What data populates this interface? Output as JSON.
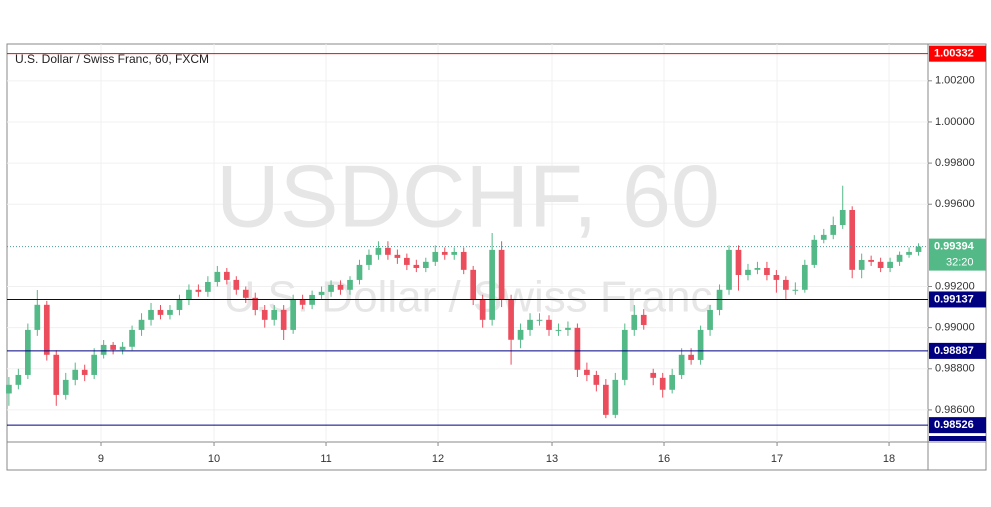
{
  "chart_data": {
    "type": "candlestick",
    "title": "U.S. Dollar / Swiss Franc, 60, FXCM",
    "watermark": "USDCHF, 60",
    "watermark_subtitle": "U.S. Dollar / Swiss Franc",
    "up_color": "#53b987",
    "down_color": "#eb4d5c",
    "open": [
      0.9868,
      0.98722,
      0.9877,
      0.98989,
      0.99111,
      0.98868,
      0.98673,
      0.98746,
      0.98795,
      0.9877,
      0.98868,
      0.98916,
      0.98892,
      0.98907,
      0.98989,
      0.99038,
      0.99086,
      0.99062,
      0.99086,
      0.99135,
      0.99184,
      0.99174,
      0.99222,
      0.99271,
      0.99232,
      0.99184,
      0.99145,
      0.99086,
      0.99038,
      0.99086,
      0.98989,
      0.99135,
      0.99111,
      0.99159,
      0.99174,
      0.99208,
      0.99184,
      0.99232,
      0.99305,
      0.99354,
      0.99388,
      0.99354,
      0.99339,
      0.99305,
      0.9929,
      0.9932,
      0.99368,
      0.99354,
      0.99368,
      0.99281,
      0.99135,
      0.99038,
      0.99378,
      0.99135,
      0.98941,
      0.98989,
      0.99038,
      0.99038,
      0.98989,
      0.98989,
      0.98999,
      0.98795,
      0.9877,
      0.98722,
      0.98576,
      0.98746,
      0.98989,
      0.99062,
      0.9878,
      0.98756,
      0.98698,
      0.9877,
      0.98868,
      0.98843,
      0.98989,
      0.99086,
      0.99184,
      0.99378,
      0.99256,
      0.99281,
      0.9929,
      0.99256,
      0.99232,
      0.99184,
      0.99184,
      0.99305,
      0.99427,
      0.99451,
      0.99499,
      0.99572,
      0.99281,
      0.99329,
      0.9932,
      0.9929,
      0.9932,
      0.99354,
      0.99368
    ],
    "high": [
      0.9876,
      0.988,
      0.9902,
      0.99183,
      0.9913,
      0.9889,
      0.9878,
      0.9883,
      0.9882,
      0.989,
      0.9894,
      0.9893,
      0.9893,
      0.9901,
      0.9907,
      0.9912,
      0.9911,
      0.9911,
      0.9916,
      0.9921,
      0.9921,
      0.9925,
      0.993,
      0.9929,
      0.9925,
      0.992,
      0.9917,
      0.9911,
      0.9911,
      0.9911,
      0.9916,
      0.9916,
      0.9918,
      0.992,
      0.9923,
      0.9923,
      0.9925,
      0.9933,
      0.9938,
      0.9942,
      0.9942,
      0.9938,
      0.9936,
      0.9933,
      0.9934,
      0.994,
      0.9939,
      0.9939,
      0.9939,
      0.993,
      0.9916,
      0.9946,
      0.9942,
      0.9916,
      0.9902,
      0.9907,
      0.9907,
      0.9906,
      0.9902,
      0.9903,
      0.9902,
      0.9883,
      0.9879,
      0.9875,
      0.9878,
      0.9902,
      0.9911,
      0.9909,
      0.988,
      0.9878,
      0.988,
      0.989,
      0.989,
      0.9901,
      0.9911,
      0.9921,
      0.994,
      0.994,
      0.9931,
      0.9932,
      0.9932,
      0.9928,
      0.9925,
      0.9922,
      0.9933,
      0.9945,
      0.9948,
      0.9954,
      0.9969,
      0.9959,
      0.9936,
      0.9935,
      0.9934,
      0.9934,
      0.9937,
      0.9939,
      0.9941
    ],
    "low": [
      0.9862,
      0.987,
      0.9875,
      0.9896,
      0.9884,
      0.9862,
      0.9865,
      0.9872,
      0.9874,
      0.9875,
      0.9885,
      0.9887,
      0.9887,
      0.9889,
      0.9896,
      0.9901,
      0.9904,
      0.9904,
      0.9906,
      0.9911,
      0.9915,
      0.9915,
      0.992,
      0.9921,
      0.9916,
      0.9912,
      0.9906,
      0.99,
      0.9901,
      0.9894,
      0.9897,
      0.9909,
      0.9909,
      0.9914,
      0.9915,
      0.9916,
      0.9916,
      0.9921,
      0.9928,
      0.9933,
      0.9933,
      0.9931,
      0.9928,
      0.9927,
      0.9927,
      0.993,
      0.9933,
      0.9933,
      0.9926,
      0.9911,
      0.99,
      0.9901,
      0.991,
      0.9882,
      0.989,
      0.9896,
      0.9901,
      0.9896,
      0.9896,
      0.9896,
      0.9876,
      0.9874,
      0.9869,
      0.9856,
      0.9856,
      0.9872,
      0.9896,
      0.9899,
      0.9872,
      0.9866,
      0.9868,
      0.9875,
      0.9882,
      0.9882,
      0.9896,
      0.9906,
      0.9916,
      0.9918,
      0.9923,
      0.9926,
      0.9923,
      0.9917,
      0.9914,
      0.9916,
      0.9917,
      0.9929,
      0.9941,
      0.9943,
      0.9948,
      0.9924,
      0.9924,
      0.993,
      0.9927,
      0.9927,
      0.993,
      0.9934,
      0.9935
    ],
    "close": [
      0.98722,
      0.9877,
      0.98989,
      0.99111,
      0.98868,
      0.98673,
      0.98746,
      0.98795,
      0.9877,
      0.98868,
      0.98916,
      0.98892,
      0.98907,
      0.98989,
      0.99038,
      0.99086,
      0.99062,
      0.99086,
      0.99135,
      0.99184,
      0.99174,
      0.99222,
      0.99271,
      0.99232,
      0.99184,
      0.99145,
      0.99086,
      0.99038,
      0.99086,
      0.98989,
      0.99135,
      0.99111,
      0.99159,
      0.99174,
      0.99208,
      0.99184,
      0.99232,
      0.99305,
      0.99354,
      0.99388,
      0.99354,
      0.99339,
      0.99305,
      0.9929,
      0.9932,
      0.99368,
      0.99354,
      0.99368,
      0.99281,
      0.99135,
      0.99038,
      0.99378,
      0.99135,
      0.98941,
      0.98989,
      0.99038,
      0.99038,
      0.98989,
      0.98989,
      0.98999,
      0.98795,
      0.9877,
      0.98722,
      0.98576,
      0.98746,
      0.98989,
      0.99062,
      0.99013,
      0.98756,
      0.98698,
      0.9877,
      0.98868,
      0.98843,
      0.98989,
      0.99086,
      0.99184,
      0.99378,
      0.99256,
      0.99281,
      0.9929,
      0.99256,
      0.99232,
      0.99184,
      0.99184,
      0.99305,
      0.99427,
      0.99451,
      0.99499,
      0.99572,
      0.99281,
      0.99329,
      0.9932,
      0.9929,
      0.9932,
      0.99354,
      0.99368,
      0.99394
    ],
    "xlim": [
      -0.2,
      97
    ],
    "xticks": [
      {
        "value": 9.72,
        "label": "9"
      },
      {
        "value": 21.65,
        "label": "10"
      },
      {
        "value": 33.47,
        "label": "11"
      },
      {
        "value": 45.29,
        "label": "12"
      },
      {
        "value": 57.32,
        "label": "13"
      },
      {
        "value": 69.14,
        "label": "16"
      },
      {
        "value": 81.07,
        "label": "17"
      },
      {
        "value": 92.89,
        "label": "18"
      }
    ],
    "ylim": [
      0.98444,
      1.00379
    ],
    "yticks": [
      {
        "value": 0.986,
        "label": "0.98600"
      },
      {
        "value": 0.988,
        "label": "0.98800"
      },
      {
        "value": 0.99,
        "label": "0.99000"
      },
      {
        "value": 0.992,
        "label": "0.99200"
      },
      {
        "value": 0.996,
        "label": "0.99600"
      },
      {
        "value": 0.998,
        "label": "0.99800"
      },
      {
        "value": 1.0,
        "label": "1.00000"
      },
      {
        "value": 1.002,
        "label": "1.00200"
      }
    ],
    "grid": true,
    "levels": [
      {
        "value": 1.00332,
        "color": "#ff0000"
      },
      {
        "value": 0.99137,
        "color": "#000080"
      },
      {
        "value": 0.98887,
        "color": "#000080"
      },
      {
        "value": 0.98526,
        "color": "#000080"
      }
    ],
    "last_price": 0.99394,
    "countdown": "32:20"
  }
}
